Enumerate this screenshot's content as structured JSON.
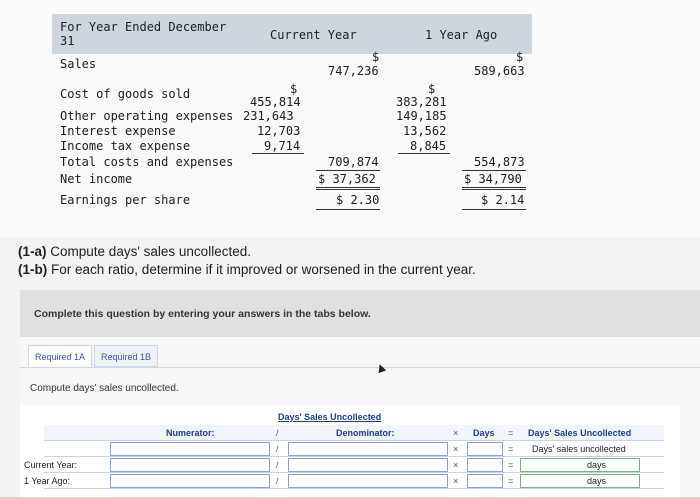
{
  "statement": {
    "header_label": "For Year Ended December\n31",
    "col_current": "Current Year",
    "col_prior": "1 Year Ago",
    "rows": {
      "sales": {
        "label": "Sales",
        "cur_dollar": "$",
        "cur": "747,236",
        "prior_dollar": "$",
        "prior": "589,663"
      },
      "cogs": {
        "label": "Cost of goods sold",
        "cur_dollar": "$",
        "cur": "455,814",
        "prior_dollar": "$",
        "prior": "383,281"
      },
      "opex": {
        "label": "Other operating expenses",
        "cur": "231,643",
        "prior": "149,185"
      },
      "interest": {
        "label": "Interest expense",
        "cur": "12,703",
        "prior": "13,562"
      },
      "tax": {
        "label": "Income tax expense",
        "cur": "9,714",
        "prior": "8,845"
      },
      "total": {
        "label": "Total costs and expenses",
        "cur": "709,874",
        "prior": "554,873"
      },
      "net": {
        "label": "Net income",
        "cur": "$ 37,362",
        "prior": "$ 34,790"
      },
      "eps": {
        "label": "Earnings per share",
        "cur": "$ 2.30",
        "prior": "$ 2.14"
      }
    }
  },
  "questions": {
    "q1a_prefix": "(1-a)",
    "q1a_text": "Compute days' sales uncollected.",
    "q1b_prefix": "(1-b)",
    "q1b_text": "For each ratio, determine if it improved or worsened in the current year."
  },
  "complete_text": "Complete this question by entering your answers in the tabs below.",
  "tabs": [
    "Required 1A",
    "Required 1B"
  ],
  "subquestion": "Compute days' sales uncollected.",
  "table": {
    "title": "Days' Sales Uncollected",
    "numerator_label": "Numerator:",
    "denominator_label": "Denominator:",
    "divide": "/",
    "times": "×",
    "days_label": "Days",
    "equals": "=",
    "result_header": "Days' Sales Uncollected",
    "result_subheader": "Days' sales uncollected",
    "rows": [
      {
        "label": "Current Year:",
        "unit": "days"
      },
      {
        "label": "1 Year Ago:",
        "unit": "days"
      }
    ]
  }
}
